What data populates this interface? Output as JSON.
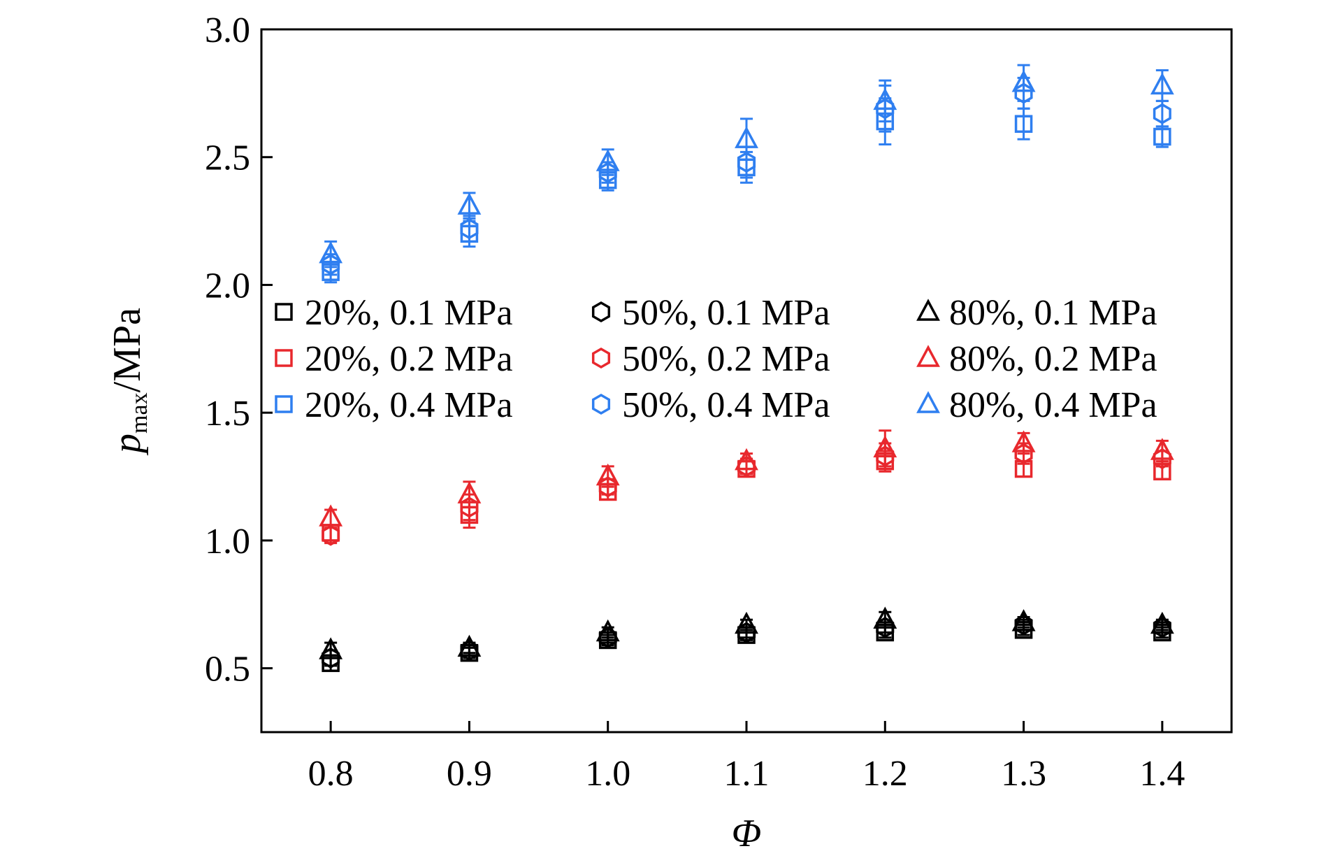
{
  "chart_data": {
    "type": "scatter",
    "title": "",
    "xlabel": "Φ",
    "ylabel_main": "p",
    "ylabel_sub": "max",
    "ylabel_unit": "/MPa",
    "x": [
      0.8,
      0.9,
      1.0,
      1.1,
      1.2,
      1.3,
      1.4
    ],
    "x_tick_labels": [
      "0.8",
      "0.9",
      "1.0",
      "1.1",
      "1.2",
      "1.3",
      "1.4"
    ],
    "xlim": [
      0.75,
      1.45
    ],
    "ylim": [
      0.25,
      3.0
    ],
    "y_ticks": [
      0.5,
      1.0,
      1.5,
      2.0,
      2.5,
      3.0
    ],
    "y_tick_labels": [
      "0.5",
      "1.0",
      "1.5",
      "2.0",
      "2.5",
      "3.0"
    ],
    "grid": false,
    "legend_position": "center-left, 3 columns",
    "error_bars": true,
    "series": [
      {
        "name": "20%, 0.1 MPa",
        "marker": "square",
        "color": "#000000",
        "values": [
          0.52,
          0.56,
          0.61,
          0.63,
          0.64,
          0.65,
          0.64
        ],
        "errors": [
          0.03,
          0.02,
          0.02,
          0.02,
          0.02,
          0.02,
          0.02
        ]
      },
      {
        "name": "50%, 0.1 MPa",
        "marker": "hexagon",
        "color": "#000000",
        "values": [
          0.54,
          0.57,
          0.62,
          0.64,
          0.66,
          0.67,
          0.66
        ],
        "errors": [
          0.03,
          0.02,
          0.02,
          0.02,
          0.02,
          0.02,
          0.02
        ]
      },
      {
        "name": "80%, 0.1 MPa",
        "marker": "triangle",
        "color": "#000000",
        "values": [
          0.57,
          0.58,
          0.64,
          0.67,
          0.69,
          0.68,
          0.67
        ],
        "errors": [
          0.03,
          0.02,
          0.02,
          0.02,
          0.03,
          0.02,
          0.02
        ]
      },
      {
        "name": "20%, 0.2 MPa",
        "marker": "square",
        "color": "#e8282d",
        "values": [
          1.03,
          1.1,
          1.19,
          1.28,
          1.31,
          1.28,
          1.27
        ],
        "errors": [
          0.03,
          0.05,
          0.03,
          0.03,
          0.04,
          0.03,
          0.03
        ]
      },
      {
        "name": "50%, 0.2 MPa",
        "marker": "hexagon",
        "color": "#e8282d",
        "values": [
          1.02,
          1.13,
          1.21,
          1.29,
          1.33,
          1.34,
          1.32
        ],
        "errors": [
          0.03,
          0.05,
          0.03,
          0.03,
          0.05,
          0.04,
          0.03
        ]
      },
      {
        "name": "80%, 0.2 MPa",
        "marker": "triangle",
        "color": "#e8282d",
        "values": [
          1.09,
          1.18,
          1.25,
          1.31,
          1.36,
          1.38,
          1.35
        ],
        "errors": [
          0.03,
          0.05,
          0.04,
          0.03,
          0.07,
          0.04,
          0.04
        ]
      },
      {
        "name": "20%, 0.4 MPa",
        "marker": "square",
        "color": "#2f7ff0",
        "values": [
          2.05,
          2.2,
          2.41,
          2.46,
          2.64,
          2.63,
          2.58
        ],
        "errors": [
          0.04,
          0.05,
          0.04,
          0.06,
          0.09,
          0.06,
          0.04
        ]
      },
      {
        "name": "50%, 0.4 MPa",
        "marker": "hexagon",
        "color": "#2f7ff0",
        "values": [
          2.08,
          2.22,
          2.44,
          2.48,
          2.69,
          2.75,
          2.67
        ],
        "errors": [
          0.04,
          0.05,
          0.04,
          0.06,
          0.09,
          0.06,
          0.05
        ]
      },
      {
        "name": "80%, 0.4 MPa",
        "marker": "triangle",
        "color": "#2f7ff0",
        "values": [
          2.12,
          2.31,
          2.48,
          2.57,
          2.72,
          2.79,
          2.78
        ],
        "errors": [
          0.05,
          0.05,
          0.05,
          0.08,
          0.08,
          0.07,
          0.06
        ]
      }
    ]
  }
}
